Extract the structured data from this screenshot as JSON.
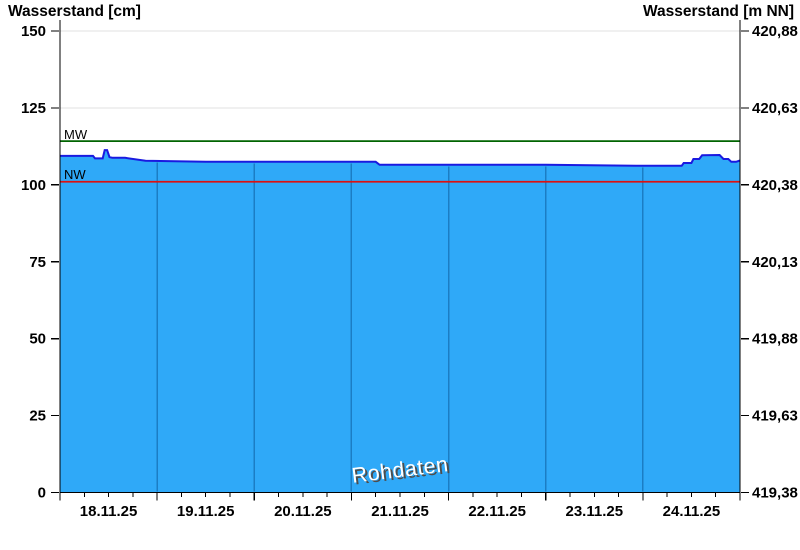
{
  "chart_data": {
    "type": "area",
    "title_left": "Wasserstand [cm]",
    "title_right": "Wasserstand [m NN]",
    "watermark": "Rohdaten",
    "x_labels": [
      "18.11.25",
      "19.11.25",
      "20.11.25",
      "21.11.25",
      "22.11.25",
      "23.11.25",
      "24.11.25"
    ],
    "days": 7,
    "ylim": [
      0,
      150
    ],
    "left_tick_values": [
      0,
      25,
      50,
      75,
      100,
      125,
      150
    ],
    "left_tick_labels": [
      "0",
      "25",
      "50",
      "75",
      "100",
      "125",
      "150"
    ],
    "right_tick_labels": [
      "419,38",
      "419,63",
      "419,88",
      "420,13",
      "420,38",
      "420,63",
      "420,88"
    ],
    "minor_ticks_per_day": 3,
    "reference_lines": [
      {
        "label": "MW",
        "value_cm": 114.2,
        "color": "#006400"
      },
      {
        "label": "NW",
        "value_cm": 101.0,
        "color": "#dd1111"
      }
    ],
    "series": [
      {
        "name": "Wasserstand Rohdaten",
        "unit": "cm",
        "points_t_cm": [
          [
            0.0,
            109.4
          ],
          [
            0.34,
            109.4
          ],
          [
            0.36,
            108.6
          ],
          [
            0.44,
            108.6
          ],
          [
            0.46,
            111.3
          ],
          [
            0.485,
            111.3
          ],
          [
            0.51,
            109.0
          ],
          [
            0.54,
            108.8
          ],
          [
            0.67,
            108.8
          ],
          [
            0.88,
            107.8
          ],
          [
            1.5,
            107.5
          ],
          [
            3.25,
            107.5
          ],
          [
            3.29,
            106.5
          ],
          [
            5.0,
            106.5
          ],
          [
            6.0,
            106.2
          ],
          [
            6.4,
            106.2
          ],
          [
            6.42,
            107.1
          ],
          [
            6.5,
            107.1
          ],
          [
            6.52,
            108.4
          ],
          [
            6.58,
            108.4
          ],
          [
            6.61,
            109.6
          ],
          [
            6.79,
            109.7
          ],
          [
            6.83,
            108.4
          ],
          [
            6.88,
            108.4
          ],
          [
            6.91,
            107.5
          ],
          [
            6.96,
            107.5
          ],
          [
            7.0,
            107.9
          ]
        ]
      }
    ]
  },
  "colors": {
    "area_fill": "#2fa9f8",
    "area_edge": "#1a1ae0",
    "day_gridline_in_area": "#1b7dc4",
    "horizontal_gridline": "#e2e2e2",
    "axis": "#000000",
    "text": "#000000",
    "mw_line": "#006400",
    "nw_line": "#dd1111",
    "watermark_fill": "#ffffff",
    "watermark_shadow": "#4d4d4d"
  }
}
